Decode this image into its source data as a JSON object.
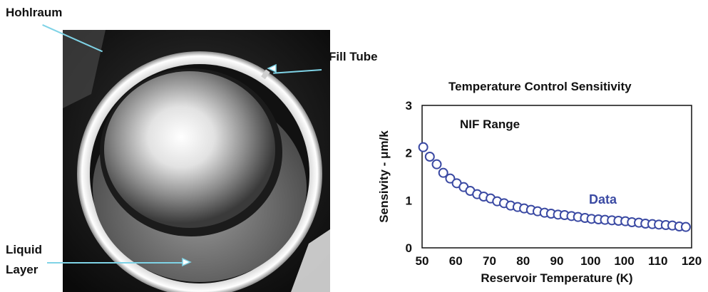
{
  "left_panel": {
    "labels": {
      "hohlraum": "Hohlraum",
      "fill_tube": "Fill Tube",
      "liquid_layer_line1": "Liquid",
      "liquid_layer_line2": "Layer"
    },
    "callout_color": "#7fd3e6"
  },
  "chart_data": {
    "type": "scatter",
    "title": "Temperature Control Sensitivity",
    "xlabel": "Reservoir Temperature (K)",
    "ylabel": "Sensivity - μm/k",
    "xlim": [
      50,
      120
    ],
    "ylim": [
      0,
      3
    ],
    "xticks": [
      "50",
      "60",
      "70",
      "80",
      "90",
      "100",
      "100",
      "110",
      "120"
    ],
    "yticks": [
      "0",
      "1",
      "2",
      "3"
    ],
    "annotations": {
      "nif_range": "NIF Range",
      "series_label": "Data"
    },
    "marker_color": "#3b4aa3",
    "series": [
      {
        "name": "Data",
        "x": [
          50.3,
          52.0,
          53.8,
          55.5,
          57.3,
          59.0,
          60.8,
          62.5,
          64.3,
          66.0,
          67.8,
          69.5,
          71.3,
          73.0,
          74.8,
          76.5,
          78.3,
          80.0,
          81.8,
          83.5,
          85.3,
          87.0,
          88.8,
          90.5,
          92.3,
          94.0,
          95.8,
          97.5,
          99.3,
          101.0,
          102.8,
          104.5,
          106.3,
          108.0,
          109.8,
          111.5,
          113.3,
          115.0,
          116.8,
          118.5
        ],
        "y": [
          2.12,
          1.92,
          1.76,
          1.58,
          1.46,
          1.36,
          1.28,
          1.2,
          1.13,
          1.08,
          1.04,
          0.98,
          0.94,
          0.89,
          0.86,
          0.83,
          0.8,
          0.77,
          0.74,
          0.72,
          0.7,
          0.69,
          0.67,
          0.65,
          0.63,
          0.61,
          0.6,
          0.59,
          0.58,
          0.57,
          0.56,
          0.54,
          0.53,
          0.51,
          0.5,
          0.49,
          0.48,
          0.47,
          0.45,
          0.44
        ]
      }
    ]
  }
}
